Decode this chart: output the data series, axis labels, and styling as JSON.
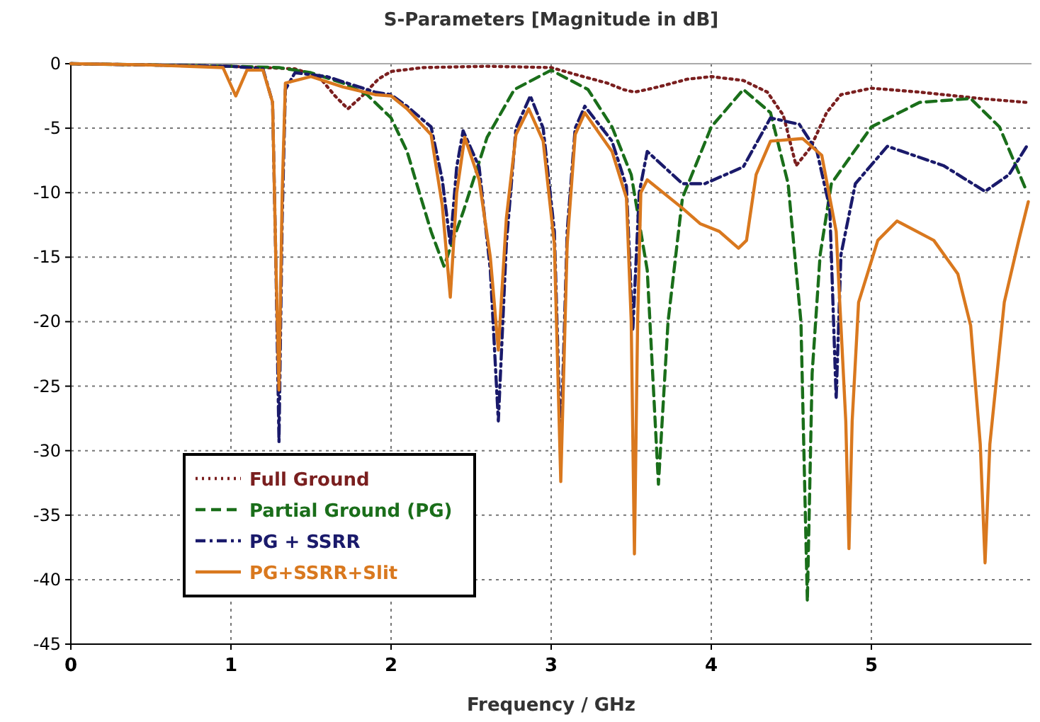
{
  "chart_data": {
    "type": "line",
    "title": "S-Parameters [Magnitude in dB]",
    "xlabel": "Frequency / GHz",
    "xlim": [
      0,
      6
    ],
    "xticks": [
      0,
      1,
      2,
      3,
      4,
      5
    ],
    "ylim": [
      -45,
      0
    ],
    "yticks": [
      0,
      -5,
      -10,
      -15,
      -20,
      -25,
      -30,
      -35,
      -40,
      -45
    ],
    "grid": true,
    "legend": "bottom left",
    "marker": "none",
    "series": [
      {
        "name": "Full Ground",
        "color": "#7a1f1f",
        "line_style": "dotted",
        "x": [
          0,
          0.5,
          1,
          1.4,
          1.55,
          1.65,
          1.73,
          1.82,
          1.92,
          2.0,
          2.2,
          2.6,
          3.0,
          3.2,
          3.35,
          3.45,
          3.52,
          3.6,
          3.7,
          3.85,
          4.0,
          4.2,
          4.35,
          4.45,
          4.53,
          4.62,
          4.72,
          4.81,
          5.0,
          5.3,
          5.68,
          5.97
        ],
        "values": [
          0,
          -0.1,
          -0.2,
          -0.4,
          -1,
          -2.5,
          -3.5,
          -2.5,
          -1.2,
          -0.6,
          -0.3,
          -0.2,
          -0.3,
          -1,
          -1.5,
          -2,
          -2.2,
          -2,
          -1.7,
          -1.2,
          -1,
          -1.3,
          -2.2,
          -4,
          -7.9,
          -6.5,
          -3.8,
          -2.4,
          -1.9,
          -2.2,
          -2.7,
          -3
        ]
      },
      {
        "name": "Partial Ground (PG)",
        "color": "#1a6e1a",
        "line_style": "dashed",
        "x": [
          0,
          0.5,
          1,
          1.3,
          1.5,
          1.7,
          1.85,
          2.0,
          2.1,
          2.16,
          2.25,
          2.33,
          2.45,
          2.6,
          2.77,
          3.0,
          3.23,
          3.38,
          3.5,
          3.6,
          3.67,
          3.73,
          3.82,
          4.0,
          4.2,
          4.37,
          4.48,
          4.56,
          4.6,
          4.63,
          4.68,
          4.75,
          5.0,
          5.3,
          5.62,
          5.8,
          5.97
        ],
        "values": [
          0,
          -0.1,
          -0.2,
          -0.3,
          -0.7,
          -1.5,
          -2.4,
          -4.2,
          -6.8,
          -9.3,
          -13,
          -15.7,
          -11.5,
          -5.7,
          -2,
          -0.5,
          -2,
          -4.9,
          -8.6,
          -16,
          -32.6,
          -20,
          -10.4,
          -4.9,
          -2,
          -3.8,
          -9.3,
          -20,
          -41.7,
          -24,
          -14.8,
          -9.3,
          -4.9,
          -3,
          -2.7,
          -4.9,
          -9.9
        ]
      },
      {
        "name": "PG + SSRR",
        "color": "#1a1a6b",
        "line_style": "dashdot",
        "x": [
          0,
          0.5,
          1,
          1.2,
          1.26,
          1.28,
          1.3,
          1.32,
          1.34,
          1.4,
          1.6,
          1.9,
          2.0,
          2.1,
          2.25,
          2.32,
          2.37,
          2.41,
          2.45,
          2.55,
          2.62,
          2.67,
          2.72,
          2.78,
          2.87,
          2.95,
          3.02,
          3.06,
          3.1,
          3.15,
          3.21,
          3.38,
          3.47,
          3.51,
          3.55,
          3.6,
          3.82,
          3.96,
          4.2,
          4.37,
          4.55,
          4.66,
          4.74,
          4.78,
          4.81,
          4.9,
          5.1,
          5.45,
          5.71,
          5.86,
          5.97
        ],
        "values": [
          0,
          -0.1,
          -0.2,
          -0.4,
          -3,
          -15,
          -29.3,
          -12,
          -2,
          -0.7,
          -1,
          -2.2,
          -2.4,
          -3.3,
          -4.9,
          -9,
          -14,
          -8,
          -5.2,
          -8,
          -16,
          -27.7,
          -14,
          -5,
          -2.5,
          -5,
          -13,
          -30,
          -13,
          -5,
          -3.3,
          -6,
          -9.5,
          -20.7,
          -10,
          -6.8,
          -9.3,
          -9.3,
          -8,
          -4.2,
          -4.7,
          -6.8,
          -11.2,
          -26,
          -14.8,
          -9.3,
          -6.4,
          -7.9,
          -9.9,
          -8.6,
          -6.4
        ]
      },
      {
        "name": "PG+SSRR+Slit",
        "color": "#d9781e",
        "line_style": "solid",
        "x": [
          0,
          0.5,
          0.95,
          1.03,
          1.1,
          1.2,
          1.26,
          1.28,
          1.3,
          1.32,
          1.34,
          1.5,
          1.7,
          1.9,
          2.0,
          2.1,
          2.25,
          2.32,
          2.37,
          2.41,
          2.46,
          2.55,
          2.62,
          2.67,
          2.72,
          2.78,
          2.86,
          2.95,
          3.02,
          3.06,
          3.1,
          3.15,
          3.21,
          3.38,
          3.47,
          3.5,
          3.52,
          3.54,
          3.56,
          3.6,
          3.82,
          3.93,
          4.05,
          4.17,
          4.22,
          4.28,
          4.37,
          4.57,
          4.69,
          4.78,
          4.84,
          4.86,
          4.88,
          4.92,
          5.04,
          5.16,
          5.39,
          5.54,
          5.62,
          5.68,
          5.71,
          5.74,
          5.83,
          5.92,
          5.98
        ],
        "values": [
          0,
          -0.1,
          -0.3,
          -2.5,
          -0.5,
          -0.5,
          -3,
          -15,
          -25.3,
          -10,
          -1.5,
          -1,
          -1.8,
          -2.4,
          -2.5,
          -3.5,
          -5.5,
          -11,
          -18.1,
          -10,
          -5.7,
          -9,
          -15,
          -22.2,
          -12,
          -5.5,
          -3.5,
          -6,
          -14,
          -32.4,
          -14,
          -5.5,
          -3.8,
          -6.8,
          -10.4,
          -20,
          -38,
          -20,
          -10,
          -9,
          -11.2,
          -12.4,
          -13,
          -14.3,
          -13.7,
          -8.6,
          -6,
          -5.8,
          -7.1,
          -13,
          -27.7,
          -37.6,
          -27.7,
          -18.5,
          -13.7,
          -12.2,
          -13.7,
          -16.3,
          -20.3,
          -29.5,
          -38.7,
          -29.5,
          -18.5,
          -13.7,
          -10.7
        ]
      }
    ]
  }
}
